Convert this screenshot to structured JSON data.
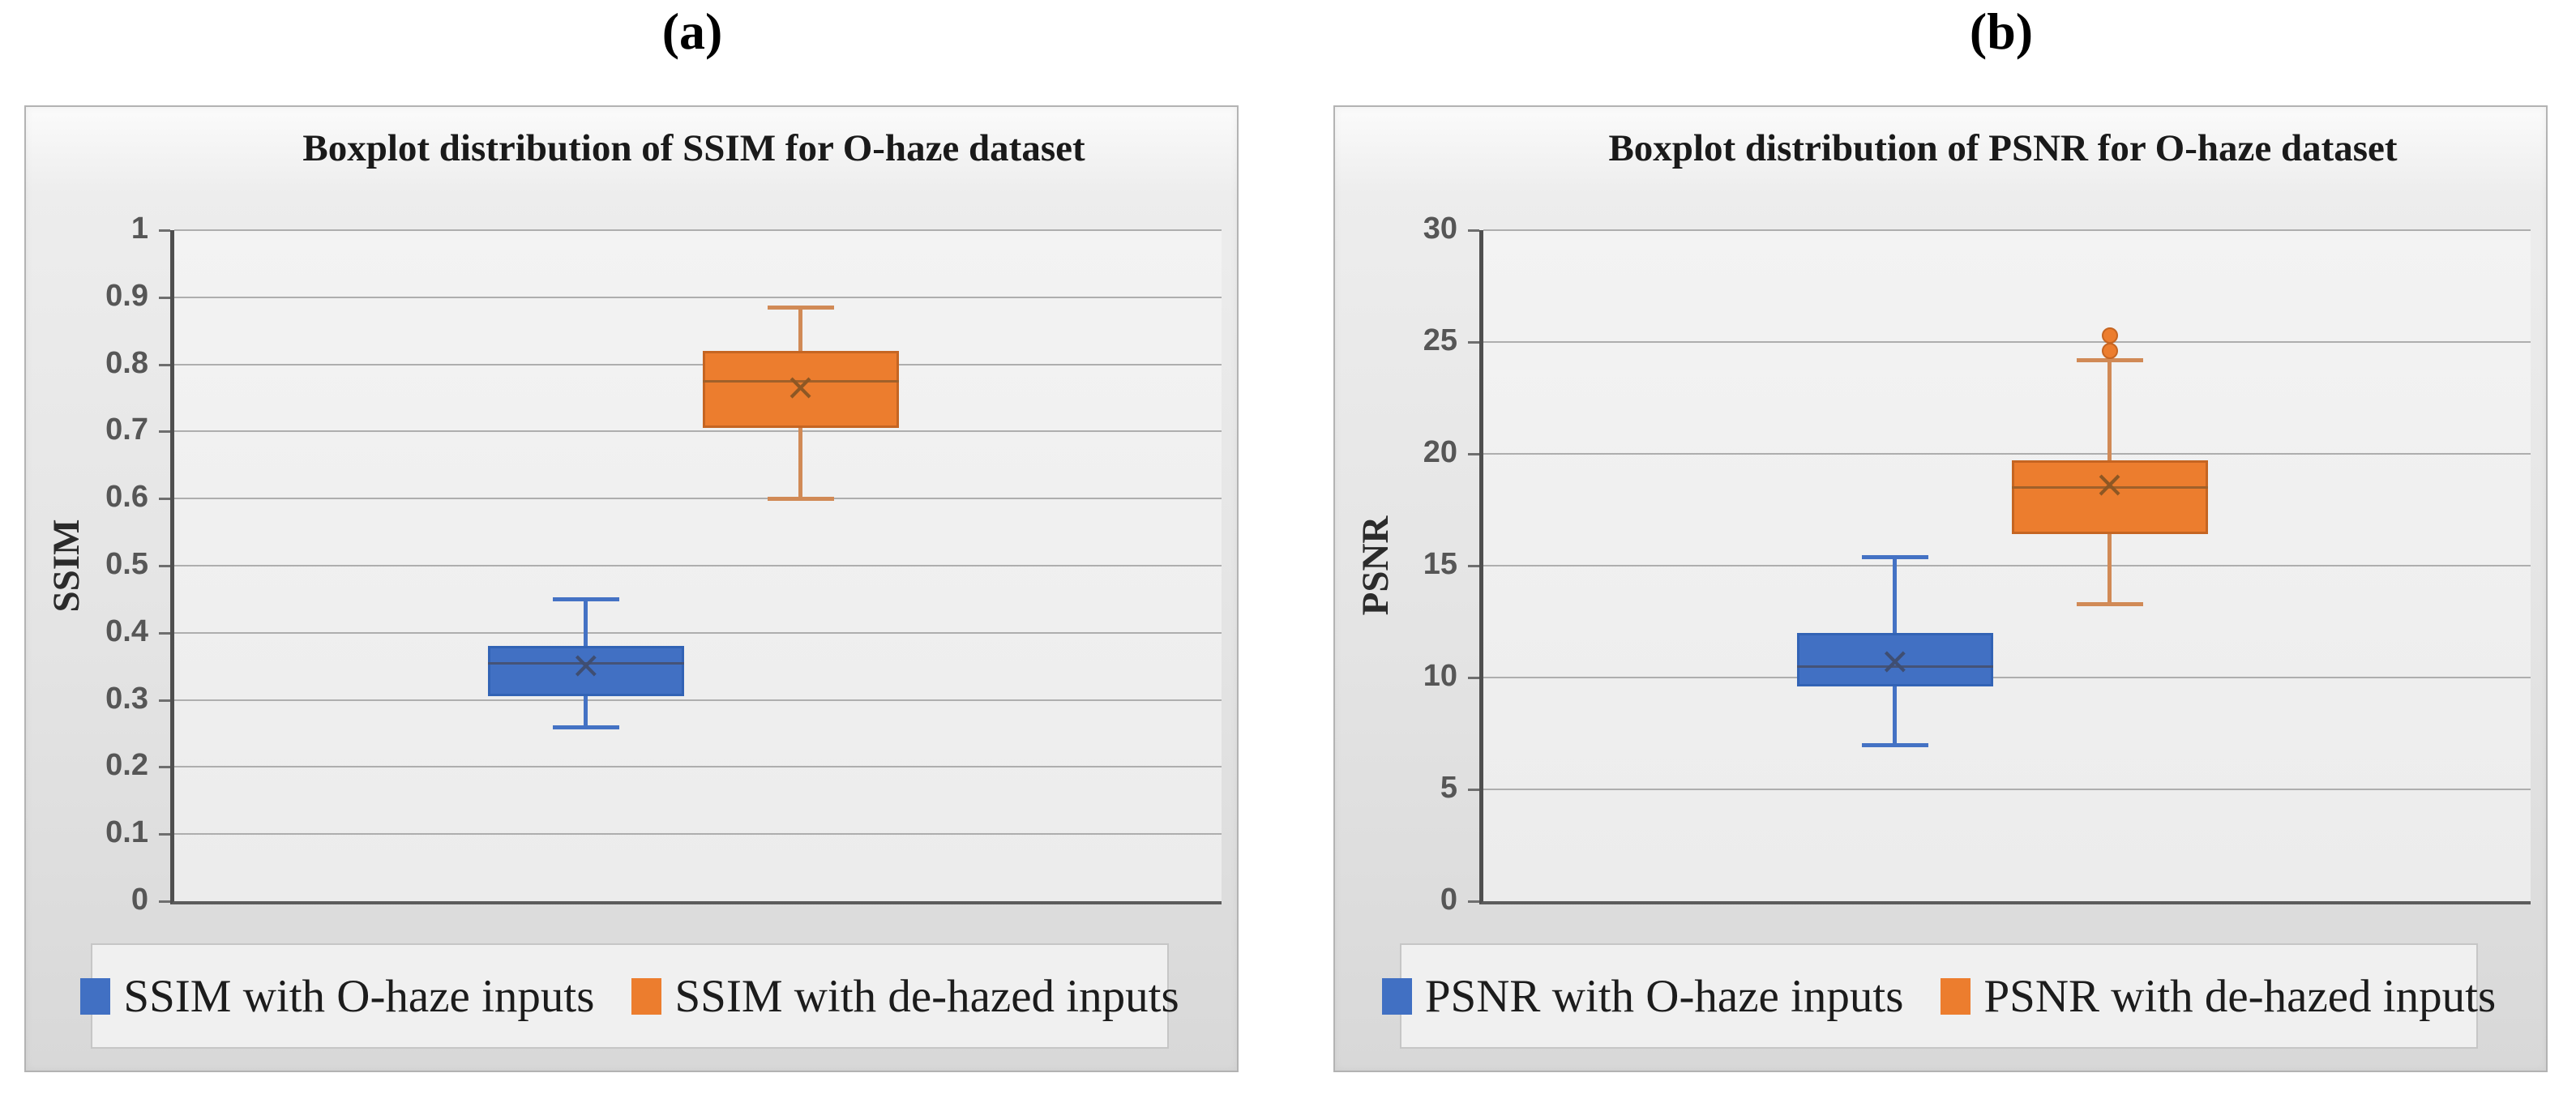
{
  "figure": {
    "label_a": "(a)",
    "label_b": "(b)"
  },
  "chart_data": [
    {
      "type": "boxplot",
      "panel_label": "(a)",
      "title": "Boxplot distribution of SSIM for O-haze dataset",
      "ylabel": "SSIM",
      "xlabel": "",
      "ylim": [
        0,
        1
      ],
      "ytick_step": 0.1,
      "ytick_labels": [
        "1",
        "0.9",
        "0.8",
        "0.7",
        "0.6",
        "0.5",
        "0.4",
        "0.3",
        "0.2",
        "0.1",
        "0"
      ],
      "grid": true,
      "legend_position": "bottom",
      "series": [
        {
          "name": "SSIM with O-haze inputs",
          "center_frac": 0.393,
          "whisker_low": 0.26,
          "q1": 0.305,
          "median": 0.355,
          "mean": 0.35,
          "q3": 0.38,
          "whisker_high": 0.45,
          "outliers": [],
          "colors": {
            "fill": "#4170c3",
            "border": "#3263b5",
            "whisker": "#4472c4",
            "median": "#455377",
            "mean": "#3f4e72"
          }
        },
        {
          "name": "SSIM with de-hazed inputs",
          "center_frac": 0.598,
          "whisker_low": 0.6,
          "q1": 0.705,
          "median": 0.775,
          "mean": 0.765,
          "q3": 0.82,
          "whisker_high": 0.885,
          "outliers": [],
          "colors": {
            "fill": "#ec7d2e",
            "border": "#c56522",
            "whisker": "#d18a56",
            "median": "#a0602a",
            "mean": "#8d5724"
          }
        }
      ]
    },
    {
      "type": "boxplot",
      "panel_label": "(b)",
      "title": "Boxplot distribution of PSNR for O-haze dataset",
      "ylabel": "PSNR",
      "xlabel": "",
      "ylim": [
        0,
        30
      ],
      "ytick_step": 5,
      "ytick_labels": [
        "30",
        "25",
        "20",
        "15",
        "10",
        "5",
        "0"
      ],
      "grid": true,
      "legend_position": "bottom",
      "series": [
        {
          "name": "PSNR with O-haze inputs",
          "center_frac": 0.393,
          "whisker_low": 7.0,
          "q1": 9.6,
          "median": 10.5,
          "mean": 10.7,
          "q3": 12.0,
          "whisker_high": 15.4,
          "outliers": [],
          "colors": {
            "fill": "#4170c3",
            "border": "#3263b5",
            "whisker": "#4472c4",
            "median": "#455377",
            "mean": "#3f4e72"
          }
        },
        {
          "name": "PSNR with de-hazed inputs",
          "center_frac": 0.598,
          "whisker_low": 13.3,
          "q1": 16.4,
          "median": 18.5,
          "mean": 18.6,
          "q3": 19.7,
          "whisker_high": 24.2,
          "outliers": [
            24.6,
            25.3
          ],
          "colors": {
            "fill": "#ec7d2e",
            "border": "#c56522",
            "whisker": "#d18a56",
            "median": "#a0602a",
            "mean": "#8d5724"
          }
        }
      ]
    }
  ]
}
